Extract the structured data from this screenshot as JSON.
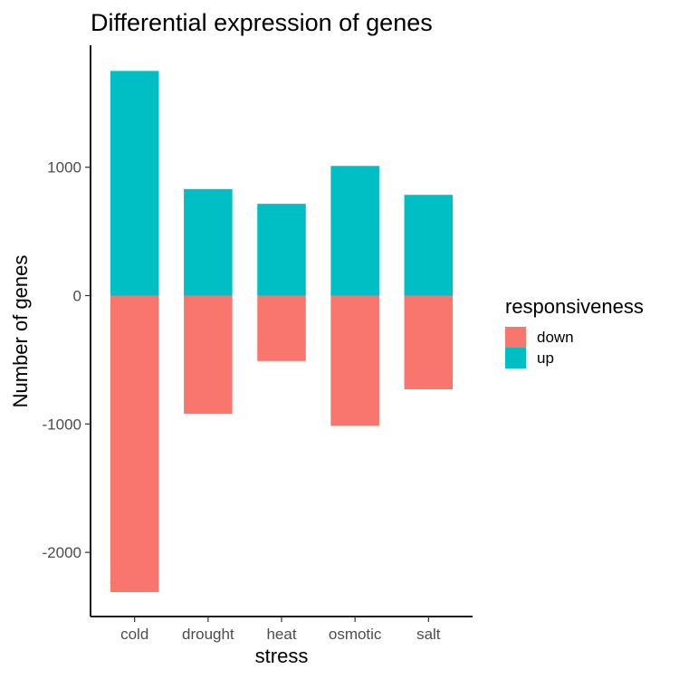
{
  "chart_data": {
    "type": "bar",
    "stacked": true,
    "title": "Differential expression of genes",
    "xlabel": "stress",
    "ylabel": "Number of genes",
    "categories": [
      "cold",
      "drought",
      "heat",
      "osmotic",
      "salt"
    ],
    "series": [
      {
        "name": "down",
        "color": "#F8766D",
        "values": [
          -2310,
          -920,
          -510,
          -1015,
          -730
        ]
      },
      {
        "name": "up",
        "color": "#00BFC4",
        "values": [
          1750,
          830,
          715,
          1010,
          785
        ]
      }
    ],
    "ylim": [
      -2500,
      1950
    ],
    "yticks": [
      -2000,
      -1000,
      0,
      1000
    ],
    "ytick_labels": [
      "-2000",
      "-1000",
      "0",
      "1000"
    ],
    "grid": false,
    "legend": {
      "title": "responsiveness",
      "position": "right"
    }
  }
}
